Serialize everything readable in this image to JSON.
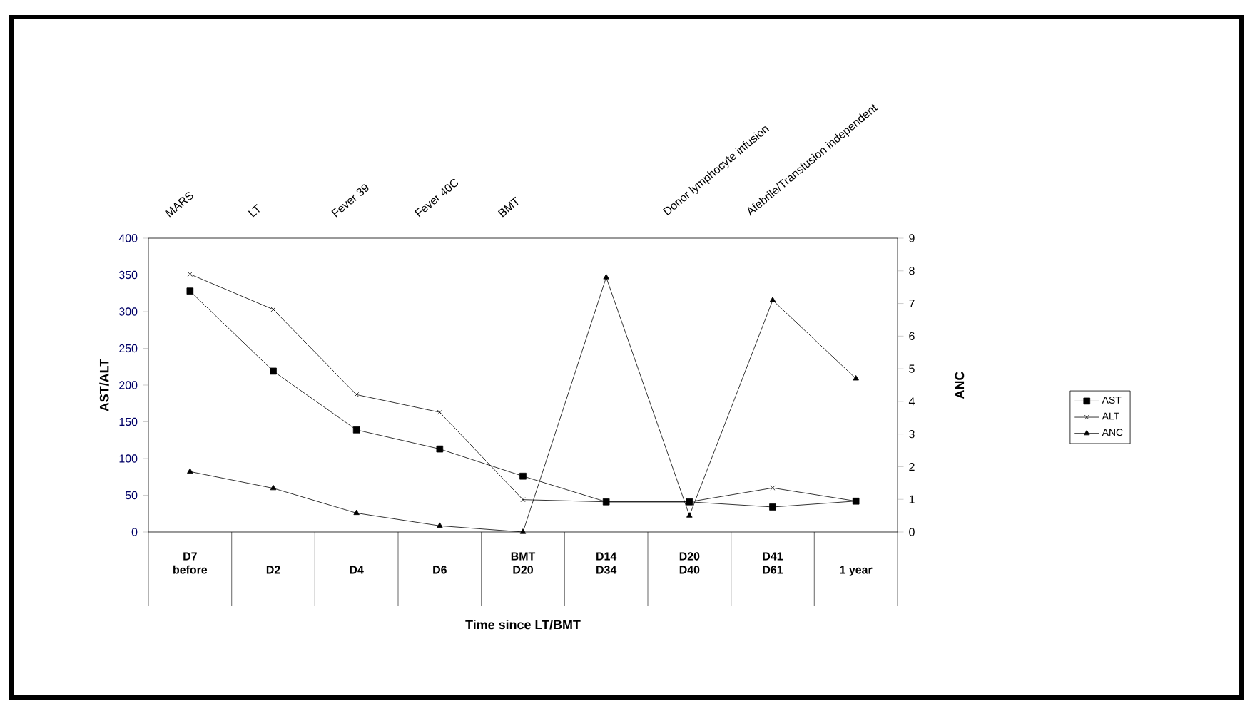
{
  "chart_data": {
    "type": "line",
    "xlabel": "Time since LT/BMT",
    "ylabel": "AST/ALT",
    "y2label": "ANC",
    "categories": [
      "D7 before",
      "D2",
      "D4",
      "D6",
      "BMT D20",
      "D14 D34",
      "D20 D40",
      "D41 D61",
      "1 year"
    ],
    "series": [
      {
        "name": "AST",
        "color": "#000000",
        "marker": "square",
        "values": [
          328,
          219,
          139,
          113,
          76,
          41,
          41,
          34,
          42
        ]
      },
      {
        "name": "ALT",
        "color": "#000000",
        "marker": "cross",
        "values": [
          351,
          303,
          187,
          163,
          44,
          41,
          41,
          60,
          42
        ]
      },
      {
        "name": "ANC",
        "color": "#000000",
        "marker": "triangle",
        "axis": "y2",
        "values": [
          1.85,
          1.34,
          0.58,
          0.19,
          0,
          7.8,
          0.5,
          7.1,
          4.7
        ]
      }
    ],
    "ylim": [
      0,
      400
    ],
    "yticks": [
      0,
      50,
      100,
      150,
      200,
      250,
      300,
      350,
      400
    ],
    "y2lim": [
      0,
      9
    ],
    "y2ticks": [
      0,
      1,
      2,
      3,
      4,
      5,
      6,
      7,
      8,
      9
    ],
    "legend": "right",
    "grid": false,
    "annotations": [
      "MARS",
      "LT",
      "Fever 39",
      "Fever 40C",
      "BMT",
      "Donor lymphocyte infusion",
      "Afebrile/Transfusion independent"
    ]
  }
}
